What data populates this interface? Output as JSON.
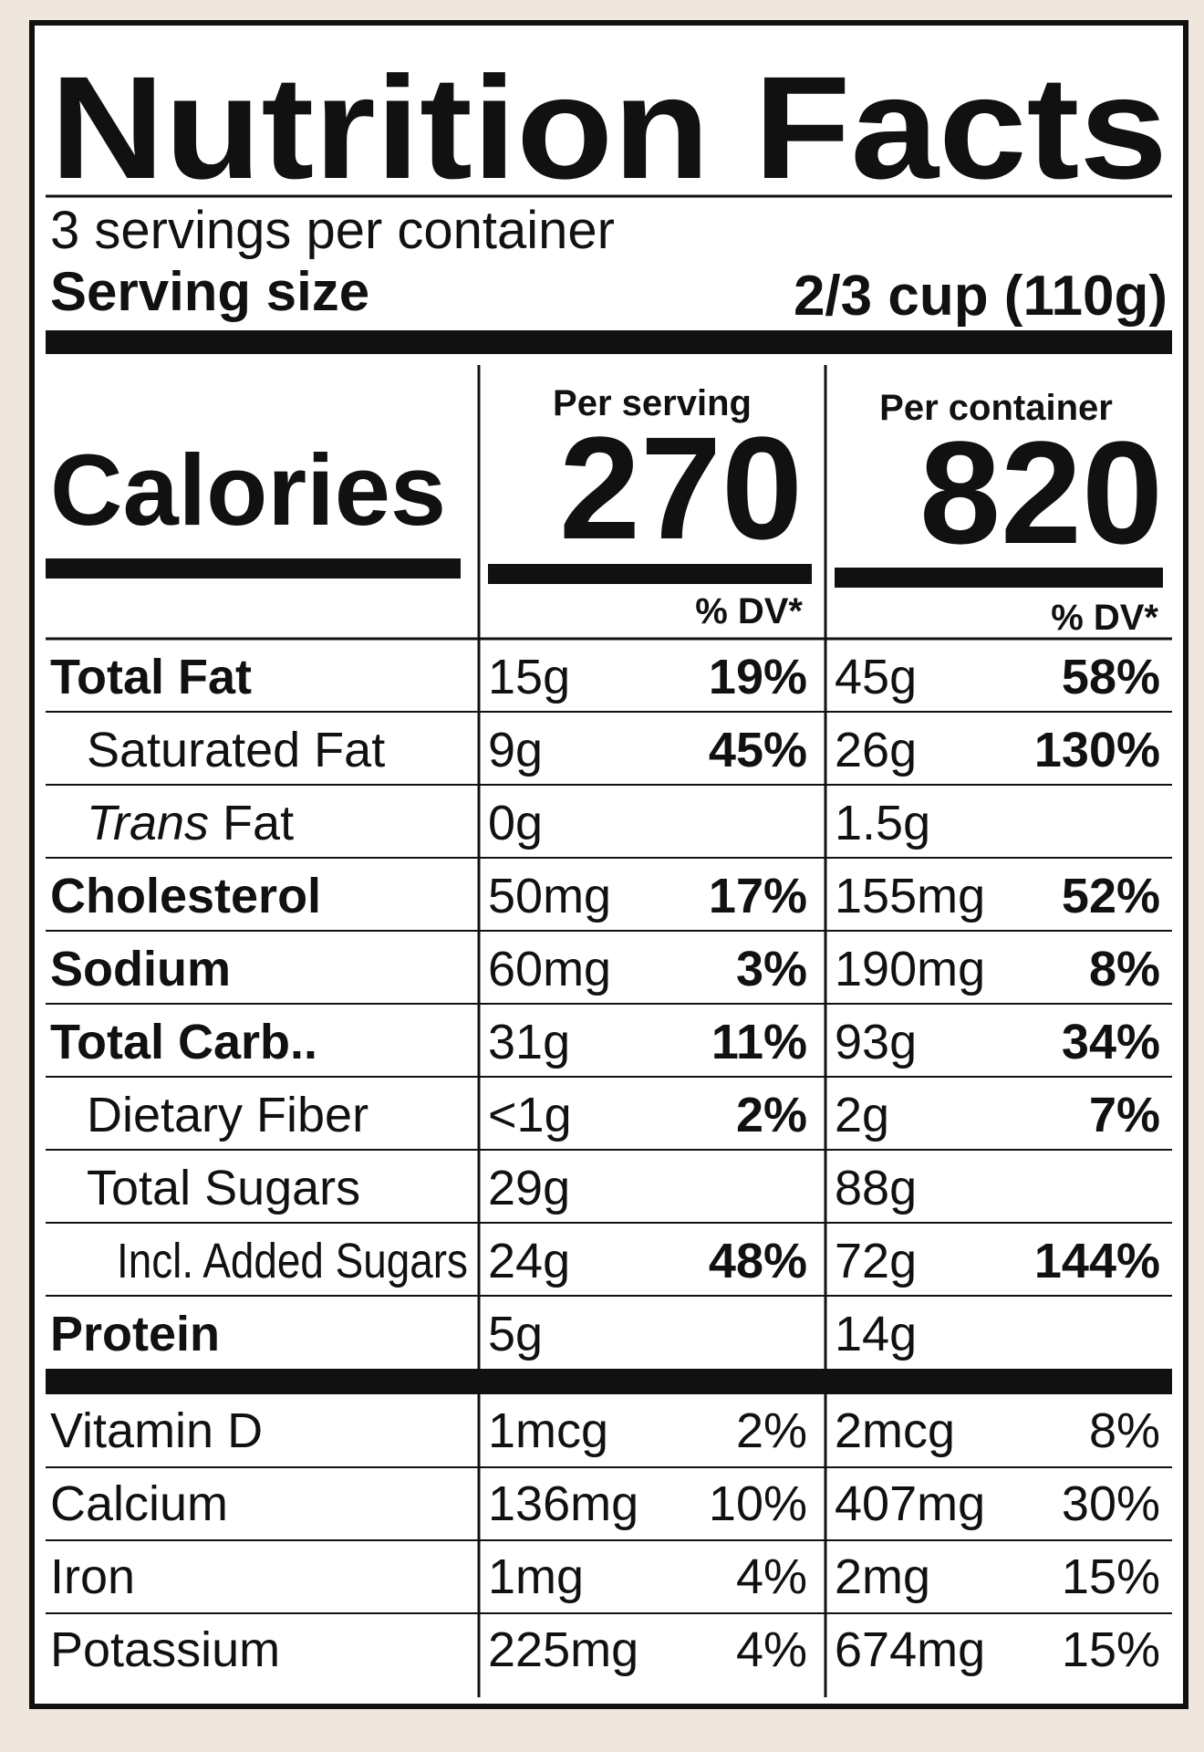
{
  "label": {
    "title": "Nutrition Facts",
    "servings": "3 servings per container",
    "serving_size_label": "Serving size",
    "serving_size_value": "2/3 cup (110g)",
    "calories_label": "Calories",
    "per_serving": {
      "header": "Per serving",
      "calories": "270",
      "dv_header": "% DV*"
    },
    "per_container": {
      "header": "Per container",
      "calories": "820",
      "dv_header": "% DV*"
    },
    "rows": [
      {
        "name": "Total Fat",
        "indent": 0,
        "bold": true,
        "serving": {
          "amount": "15g",
          "dv": "19%"
        },
        "container": {
          "amount": "45g",
          "dv": "58%"
        }
      },
      {
        "name": "Saturated Fat",
        "indent": 1,
        "bold": false,
        "serving": {
          "amount": "9g",
          "dv": "45%"
        },
        "container": {
          "amount": "26g",
          "dv": "130%"
        }
      },
      {
        "name_italic": "Trans",
        "name": "Fat",
        "indent": 1,
        "bold": false,
        "serving": {
          "amount": "0g"
        },
        "container": {
          "amount": "1.5g"
        }
      },
      {
        "name": "Cholesterol",
        "indent": 0,
        "bold": true,
        "serving": {
          "amount": "50mg",
          "dv": "17%"
        },
        "container": {
          "amount": "155mg",
          "dv": "52%"
        }
      },
      {
        "name": "Sodium",
        "indent": 0,
        "bold": true,
        "serving": {
          "amount": "60mg",
          "dv": "3%"
        },
        "container": {
          "amount": "190mg",
          "dv": "8%"
        }
      },
      {
        "name": "Total Carb..",
        "indent": 0,
        "bold": true,
        "serving": {
          "amount": "31g",
          "dv": "11%"
        },
        "container": {
          "amount": "93g",
          "dv": "34%"
        }
      },
      {
        "name": "Dietary Fiber",
        "indent": 1,
        "bold": false,
        "serving": {
          "amount": "<1g",
          "dv": "2%"
        },
        "container": {
          "amount": "2g",
          "dv": "7%"
        }
      },
      {
        "name": "Total Sugars",
        "indent": 1,
        "bold": false,
        "serving": {
          "amount": "29g"
        },
        "container": {
          "amount": "88g"
        }
      },
      {
        "name": "Incl. Added Sugars",
        "indent": 2,
        "bold": false,
        "serving": {
          "amount": "24g",
          "dv": "48%"
        },
        "container": {
          "amount": "72g",
          "dv": "144%"
        }
      },
      {
        "name": "Protein",
        "indent": 0,
        "bold": true,
        "serving": {
          "amount": "5g"
        },
        "container": {
          "amount": "14g"
        }
      }
    ],
    "vitamins": [
      {
        "name": "Vitamin D",
        "serving": {
          "amount": "1mcg",
          "dv": "2%"
        },
        "container": {
          "amount": "2mcg",
          "dv": "8%"
        }
      },
      {
        "name": "Calcium",
        "serving": {
          "amount": "136mg",
          "dv": "10%"
        },
        "container": {
          "amount": "407mg",
          "dv": "30%"
        }
      },
      {
        "name": "Iron",
        "serving": {
          "amount": "1mg",
          "dv": "4%"
        },
        "container": {
          "amount": "2mg",
          "dv": "15%"
        }
      },
      {
        "name": "Potassium",
        "serving": {
          "amount": "225mg",
          "dv": "4%"
        },
        "container": {
          "amount": "674mg",
          "dv": "15%"
        }
      }
    ]
  }
}
